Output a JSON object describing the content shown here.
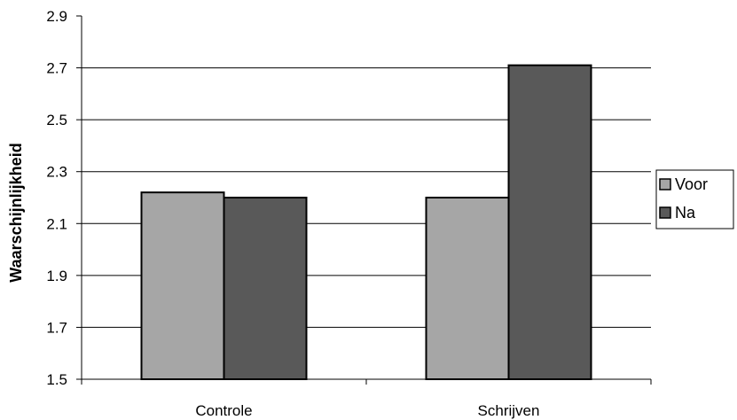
{
  "chart_data": {
    "type": "bar",
    "title": "",
    "xlabel": "",
    "ylabel": "Waarschijnlijkheid",
    "ylim": [
      1.5,
      2.9
    ],
    "yticks": [
      "1.5",
      "1.7",
      "1.9",
      "2.1",
      "2.3",
      "2.5",
      "2.7",
      "2.9"
    ],
    "categories": [
      "Controle",
      "Schrijven"
    ],
    "series": [
      {
        "name": "Voor",
        "values": [
          2.22,
          2.2
        ],
        "color": "#a6a6a6"
      },
      {
        "name": "Na",
        "values": [
          2.2,
          2.71
        ],
        "color": "#595959"
      }
    ],
    "grid": true,
    "legend_position": "right"
  }
}
